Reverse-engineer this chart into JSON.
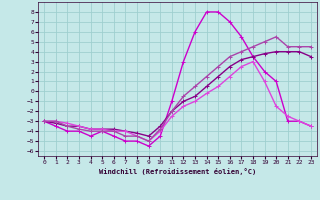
{
  "xlabel": "Windchill (Refroidissement éolien,°C)",
  "background_color": "#c5e8e8",
  "grid_color": "#9fcfcf",
  "xlim": [
    -0.5,
    23.5
  ],
  "ylim": [
    -6.5,
    9.0
  ],
  "yticks": [
    -6,
    -5,
    -4,
    -3,
    -2,
    -1,
    0,
    1,
    2,
    3,
    4,
    5,
    6,
    7,
    8
  ],
  "xticks": [
    0,
    1,
    2,
    3,
    4,
    5,
    6,
    7,
    8,
    9,
    10,
    11,
    12,
    13,
    14,
    15,
    16,
    17,
    18,
    19,
    20,
    21,
    22,
    23
  ],
  "line1": {
    "x": [
      0,
      1,
      2,
      3,
      4,
      5,
      6,
      7,
      8,
      9,
      10,
      11,
      12,
      13,
      14,
      15,
      16,
      17,
      18,
      19,
      20,
      21,
      22,
      23
    ],
    "y": [
      -3.0,
      -3.5,
      -4.0,
      -4.0,
      -4.5,
      -4.0,
      -4.5,
      -5.0,
      -5.0,
      -5.5,
      -4.5,
      -1.0,
      3.0,
      6.0,
      8.0,
      8.0,
      7.0,
      5.5,
      3.5,
      2.0,
      1.0,
      -3.0,
      -3.0,
      -3.5
    ],
    "color": "#cc00cc",
    "lw": 1.0
  },
  "line2": {
    "x": [
      0,
      1,
      2,
      3,
      4,
      5,
      6,
      7,
      8,
      9,
      10,
      11,
      12,
      13,
      14,
      15,
      16,
      17,
      18,
      19,
      20,
      21,
      22,
      23
    ],
    "y": [
      -3.0,
      -3.2,
      -3.5,
      -3.5,
      -3.8,
      -3.8,
      -3.8,
      -4.0,
      -4.2,
      -4.5,
      -3.5,
      -2.0,
      -1.0,
      -0.5,
      0.5,
      1.5,
      2.5,
      3.2,
      3.5,
      3.8,
      4.0,
      4.0,
      4.0,
      3.5
    ],
    "color": "#880088",
    "lw": 1.0
  },
  "line3": {
    "x": [
      0,
      1,
      2,
      3,
      4,
      5,
      6,
      7,
      8,
      9,
      10,
      11,
      12,
      13,
      14,
      15,
      16,
      17,
      18,
      19,
      20,
      21,
      22,
      23
    ],
    "y": [
      -3.0,
      -3.0,
      -3.2,
      -3.5,
      -3.8,
      -3.8,
      -4.0,
      -4.0,
      -4.5,
      -5.0,
      -4.0,
      -2.5,
      -1.5,
      -1.0,
      -0.2,
      0.5,
      1.5,
      2.5,
      3.0,
      1.0,
      -1.5,
      -2.5,
      -3.0,
      -3.5
    ],
    "color": "#dd44dd",
    "lw": 1.0
  },
  "line4": {
    "x": [
      0,
      1,
      2,
      3,
      4,
      5,
      6,
      7,
      8,
      9,
      10,
      11,
      12,
      13,
      14,
      15,
      16,
      17,
      18,
      19,
      20,
      21,
      22,
      23
    ],
    "y": [
      -3.0,
      -3.0,
      -3.5,
      -3.8,
      -4.0,
      -4.0,
      -4.0,
      -4.5,
      -4.5,
      -5.0,
      -3.8,
      -2.0,
      -0.5,
      0.5,
      1.5,
      2.5,
      3.5,
      4.0,
      4.5,
      5.0,
      5.5,
      4.5,
      4.5,
      4.5
    ],
    "color": "#aa44aa",
    "lw": 1.0
  }
}
